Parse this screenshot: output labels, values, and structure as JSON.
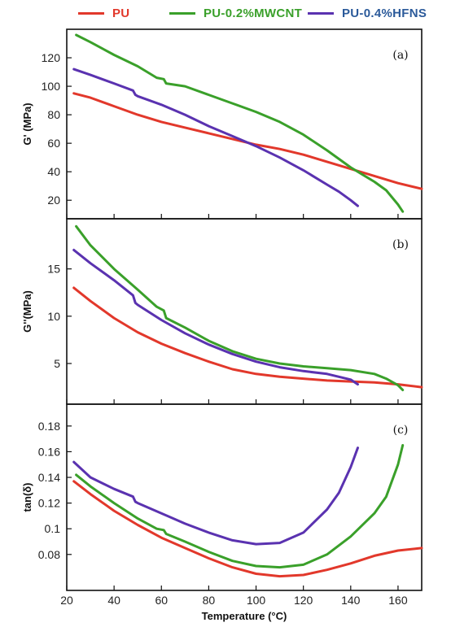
{
  "legend": {
    "items": [
      {
        "name": "PU",
        "color": "#e2382b"
      },
      {
        "name": "PU-0.2%MWCNT",
        "color": "#3aa02a"
      },
      {
        "name": "PU-0.4%HFNS",
        "color": "#5a32b0"
      }
    ]
  },
  "chart_data": [
    {
      "type": "line",
      "panel_label": "(a)",
      "ylabel": "G' (MPa)",
      "xlabel": "",
      "xlim": [
        20,
        170
      ],
      "ylim": [
        7,
        140
      ],
      "yticks": [
        20,
        40,
        60,
        80,
        100,
        120
      ],
      "series": [
        {
          "name": "PU",
          "color": "#e2382b",
          "x": [
            23,
            30,
            40,
            50,
            60,
            70,
            80,
            90,
            100,
            110,
            120,
            130,
            140,
            150,
            160,
            170
          ],
          "y": [
            95,
            92,
            86,
            80,
            75,
            71,
            67,
            63,
            59,
            56,
            52,
            47,
            42,
            37,
            32,
            28
          ]
        },
        {
          "name": "PU-0.2%MWCNT",
          "color": "#3aa02a",
          "x": [
            24,
            30,
            40,
            50,
            58,
            61,
            62,
            70,
            80,
            90,
            100,
            110,
            120,
            130,
            140,
            145,
            150,
            155,
            160,
            162
          ],
          "y": [
            136,
            131,
            122,
            114,
            106,
            105,
            102,
            100,
            94,
            88,
            82,
            75,
            66,
            55,
            43,
            38,
            33,
            27,
            17,
            12
          ]
        },
        {
          "name": "PU-0.4%HFNS",
          "color": "#5a32b0",
          "x": [
            23,
            30,
            40,
            48,
            49,
            50,
            60,
            70,
            80,
            90,
            100,
            110,
            120,
            130,
            135,
            140,
            143
          ],
          "y": [
            112,
            108,
            102,
            97,
            94,
            93,
            87,
            80,
            72,
            65,
            58,
            50,
            41,
            31,
            26,
            20,
            16
          ]
        }
      ]
    },
    {
      "type": "line",
      "panel_label": "(b)",
      "ylabel": "G''(MPa)",
      "xlabel": "",
      "xlim": [
        20,
        170
      ],
      "ylim": [
        0.7,
        20.3
      ],
      "yticks": [
        5,
        10,
        15
      ],
      "series": [
        {
          "name": "PU",
          "color": "#e2382b",
          "x": [
            23,
            30,
            40,
            50,
            60,
            70,
            80,
            90,
            100,
            110,
            120,
            130,
            140,
            150,
            160,
            170
          ],
          "y": [
            13,
            11.6,
            9.8,
            8.3,
            7.1,
            6.1,
            5.2,
            4.4,
            3.9,
            3.6,
            3.4,
            3.2,
            3.1,
            3.0,
            2.8,
            2.5
          ]
        },
        {
          "name": "PU-0.2%MWCNT",
          "color": "#3aa02a",
          "x": [
            24,
            30,
            40,
            50,
            58,
            61,
            62,
            70,
            80,
            90,
            100,
            110,
            120,
            130,
            140,
            150,
            155,
            160,
            162
          ],
          "y": [
            19.5,
            17.5,
            15.0,
            12.8,
            11.0,
            10.6,
            9.8,
            8.8,
            7.4,
            6.3,
            5.5,
            5.0,
            4.7,
            4.5,
            4.3,
            3.9,
            3.4,
            2.7,
            2.2
          ]
        },
        {
          "name": "PU-0.4%HFNS",
          "color": "#5a32b0",
          "x": [
            23,
            30,
            40,
            48,
            49,
            50,
            60,
            70,
            80,
            90,
            100,
            110,
            120,
            130,
            140,
            143
          ],
          "y": [
            17,
            15.6,
            13.8,
            12.2,
            11.4,
            11.2,
            9.6,
            8.2,
            7.0,
            6.0,
            5.2,
            4.6,
            4.2,
            3.9,
            3.3,
            2.8
          ]
        }
      ]
    },
    {
      "type": "line",
      "panel_label": "(c)",
      "ylabel": "tan(δ)",
      "xlabel": "Temperature (°C)",
      "xlim": [
        20,
        170
      ],
      "ylim": [
        0.052,
        0.197
      ],
      "yticks": [
        0.08,
        0.1,
        0.12,
        0.14,
        0.16,
        0.18
      ],
      "ytick_labels": [
        "0.08",
        "0.1",
        "0.12",
        "0.14",
        "0.16",
        "0.18"
      ],
      "xticks": [
        20,
        40,
        60,
        80,
        100,
        120,
        140,
        160
      ],
      "series": [
        {
          "name": "PU",
          "color": "#e2382b",
          "x": [
            23,
            30,
            40,
            50,
            60,
            70,
            80,
            90,
            100,
            110,
            120,
            130,
            140,
            150,
            160,
            170
          ],
          "y": [
            0.137,
            0.127,
            0.114,
            0.103,
            0.093,
            0.085,
            0.077,
            0.07,
            0.065,
            0.063,
            0.064,
            0.068,
            0.073,
            0.079,
            0.083,
            0.085
          ]
        },
        {
          "name": "PU-0.2%MWCNT",
          "color": "#3aa02a",
          "x": [
            24,
            30,
            40,
            50,
            58,
            61,
            62,
            70,
            80,
            90,
            100,
            110,
            120,
            130,
            140,
            150,
            155,
            160,
            162
          ],
          "y": [
            0.142,
            0.133,
            0.12,
            0.108,
            0.1,
            0.099,
            0.096,
            0.09,
            0.082,
            0.075,
            0.071,
            0.07,
            0.072,
            0.08,
            0.094,
            0.112,
            0.125,
            0.15,
            0.165
          ]
        },
        {
          "name": "PU-0.4%HFNS",
          "color": "#5a32b0",
          "x": [
            23,
            30,
            40,
            48,
            49,
            50,
            60,
            70,
            80,
            90,
            100,
            110,
            120,
            130,
            135,
            140,
            143
          ],
          "y": [
            0.152,
            0.14,
            0.131,
            0.125,
            0.121,
            0.12,
            0.112,
            0.104,
            0.097,
            0.091,
            0.088,
            0.089,
            0.097,
            0.115,
            0.128,
            0.148,
            0.163
          ]
        }
      ]
    }
  ]
}
